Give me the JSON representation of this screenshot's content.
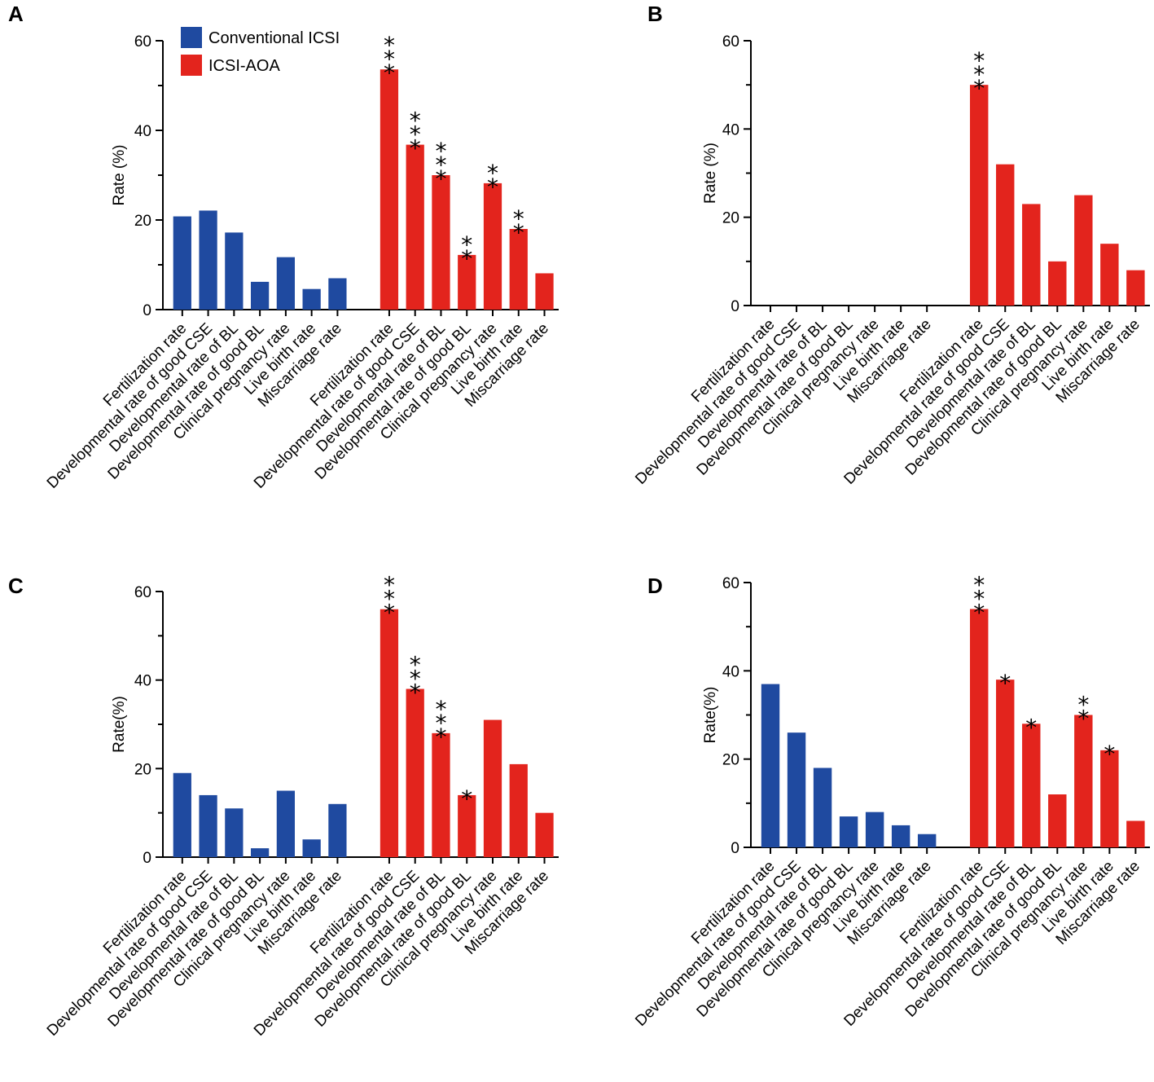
{
  "legend": {
    "items": [
      {
        "label": "Conventional ICSI",
        "color": "#1f4aa0"
      },
      {
        "label": "ICSI-AOA",
        "color": "#e3241d"
      }
    ]
  },
  "colors": {
    "conventional": "#1f4aa0",
    "aoa": "#e3241d"
  },
  "chart_data": [
    {
      "panel": "A",
      "type": "bar",
      "ylabel": "Rate (%)",
      "ylim": [
        0,
        60
      ],
      "yticks": [
        0,
        20,
        40,
        60
      ],
      "categories": [
        "Fertilization rate",
        "Developmental rate of good CSE",
        "Developmental rate of BL",
        "Developmental rate of good BL",
        "Clinical pregnancy rate",
        "Live birth rate",
        "Miscarriage rate"
      ],
      "series": [
        {
          "name": "Conventional ICSI",
          "values": [
            20.8,
            22.1,
            17.2,
            6.2,
            11.7,
            4.6,
            7.0
          ],
          "significance": [
            "",
            "",
            "",
            "",
            "",
            "",
            ""
          ]
        },
        {
          "name": "ICSI-AOA",
          "values": [
            53.6,
            36.8,
            30.0,
            12.2,
            28.2,
            18.0,
            8.1
          ],
          "significance": [
            "***",
            "***",
            "***",
            "**",
            "**",
            "**",
            ""
          ]
        }
      ]
    },
    {
      "panel": "B",
      "type": "bar",
      "ylabel": "Rate (%)",
      "ylim": [
        0,
        60
      ],
      "yticks": [
        0,
        20,
        40,
        60
      ],
      "categories": [
        "Fertilization rate",
        "Developmental rate of good CSE",
        "Developmental rate of BL",
        "Developmental rate of good BL",
        "Clinical pregnancy rate",
        "Live birth rate",
        "Miscarriage rate"
      ],
      "series": [
        {
          "name": "Conventional ICSI",
          "values": [
            0,
            0,
            0,
            0,
            0,
            0,
            0
          ],
          "significance": [
            "",
            "",
            "",
            "",
            "",
            "",
            ""
          ]
        },
        {
          "name": "ICSI-AOA",
          "values": [
            50.0,
            32.0,
            23.0,
            10.0,
            25.0,
            14.0,
            8.0
          ],
          "significance": [
            "***",
            "",
            "",
            "",
            "",
            "",
            ""
          ]
        }
      ]
    },
    {
      "panel": "C",
      "type": "bar",
      "ylabel": "Rate(%)",
      "ylim": [
        0,
        60
      ],
      "yticks": [
        0,
        20,
        40,
        60
      ],
      "categories": [
        "Fertilization rate",
        "Developmental rate of good CSE",
        "Developmental rate of BL",
        "Developmental rate of good BL",
        "Clinical pregnancy rate",
        "Live birth rate",
        "Miscarriage rate"
      ],
      "series": [
        {
          "name": "Conventional ICSI",
          "values": [
            19.0,
            14.0,
            11.0,
            2.0,
            15.0,
            4.0,
            12.0
          ],
          "significance": [
            "",
            "",
            "",
            "",
            "",
            "",
            ""
          ]
        },
        {
          "name": "ICSI-AOA",
          "values": [
            56.0,
            38.0,
            28.0,
            14.0,
            31.0,
            21.0,
            10.0
          ],
          "significance": [
            "***",
            "***",
            "***",
            "*",
            "",
            "",
            ""
          ]
        }
      ]
    },
    {
      "panel": "D",
      "type": "bar",
      "ylabel": "Rate(%)",
      "ylim": [
        0,
        60
      ],
      "yticks": [
        0,
        20,
        40,
        60
      ],
      "categories": [
        "Fertilization rate",
        "Developmental rate of good CSE",
        "Developmental rate of BL",
        "Developmental rate of good BL",
        "Clinical pregnancy rate",
        "Live birth rate",
        "Miscarriage rate"
      ],
      "series": [
        {
          "name": "Conventional ICSI",
          "values": [
            37.0,
            26.0,
            18.0,
            7.0,
            8.0,
            5.0,
            3.0
          ],
          "significance": [
            "",
            "",
            "",
            "",
            "",
            "",
            ""
          ]
        },
        {
          "name": "ICSI-AOA",
          "values": [
            54.0,
            38.0,
            28.0,
            12.0,
            30.0,
            22.0,
            6.0
          ],
          "significance": [
            "***",
            "*",
            "*",
            "",
            "**",
            "*",
            ""
          ]
        }
      ]
    }
  ]
}
